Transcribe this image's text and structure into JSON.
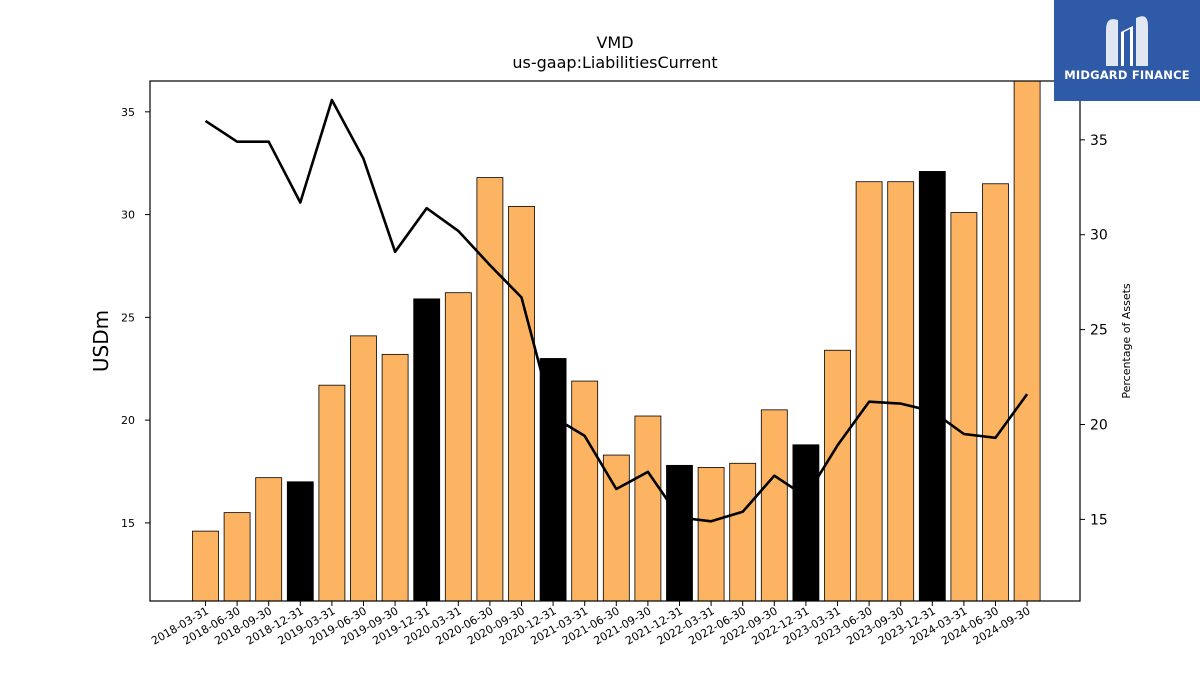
{
  "brand": {
    "name": "MIDGARD FINANCE",
    "logo_icon": "midgard-m-icon",
    "color": "#2f5aa8"
  },
  "chart_data": {
    "type": "bar",
    "title": "VMD",
    "subtitle": "us-gaap:LiabilitiesCurrent",
    "ylabel": "USDm",
    "y2label": "Percentage of Assets",
    "ylim": [
      11.2,
      36.5
    ],
    "y2lim": [
      10.7,
      38.1
    ],
    "yticks": [
      15,
      20,
      25,
      30,
      35
    ],
    "y2ticks": [
      15,
      20,
      25,
      30,
      35
    ],
    "categories": [
      "2018-03-31",
      "2018-06-30",
      "2018-09-30",
      "2018-12-31",
      "2019-03-31",
      "2019-06-30",
      "2019-09-30",
      "2019-12-31",
      "2020-03-31",
      "2020-06-30",
      "2020-09-30",
      "2020-12-31",
      "2021-03-31",
      "2021-06-30",
      "2021-09-30",
      "2021-12-31",
      "2022-03-31",
      "2022-06-30",
      "2022-09-30",
      "2022-12-31",
      "2023-03-31",
      "2023-06-30",
      "2023-09-30",
      "2023-12-31",
      "2024-03-31",
      "2024-06-30",
      "2024-09-30"
    ],
    "series": [
      {
        "type": "bar",
        "values": [
          14.6,
          15.5,
          17.2,
          17.0,
          21.7,
          24.1,
          23.2,
          25.9,
          26.2,
          31.8,
          30.4,
          23.0,
          21.9,
          18.3,
          20.2,
          17.8,
          17.7,
          17.9,
          20.5,
          18.8,
          23.4,
          31.6,
          31.6,
          32.1,
          30.1,
          31.5,
          36.5
        ]
      },
      {
        "type": "line",
        "axis": "right",
        "values": [
          36.0,
          34.9,
          34.9,
          31.7,
          37.1,
          34.0,
          29.1,
          31.4,
          30.2,
          28.4,
          26.7,
          20.4,
          19.4,
          16.6,
          17.5,
          15.1,
          14.9,
          15.4,
          17.3,
          16.2,
          18.9,
          21.2,
          21.1,
          20.7,
          19.5,
          19.3,
          21.6
        ]
      }
    ],
    "colors": {
      "bar": "#fdb462",
      "bar_q4": "#000000",
      "line": "#000000",
      "edge": "#000000"
    }
  }
}
